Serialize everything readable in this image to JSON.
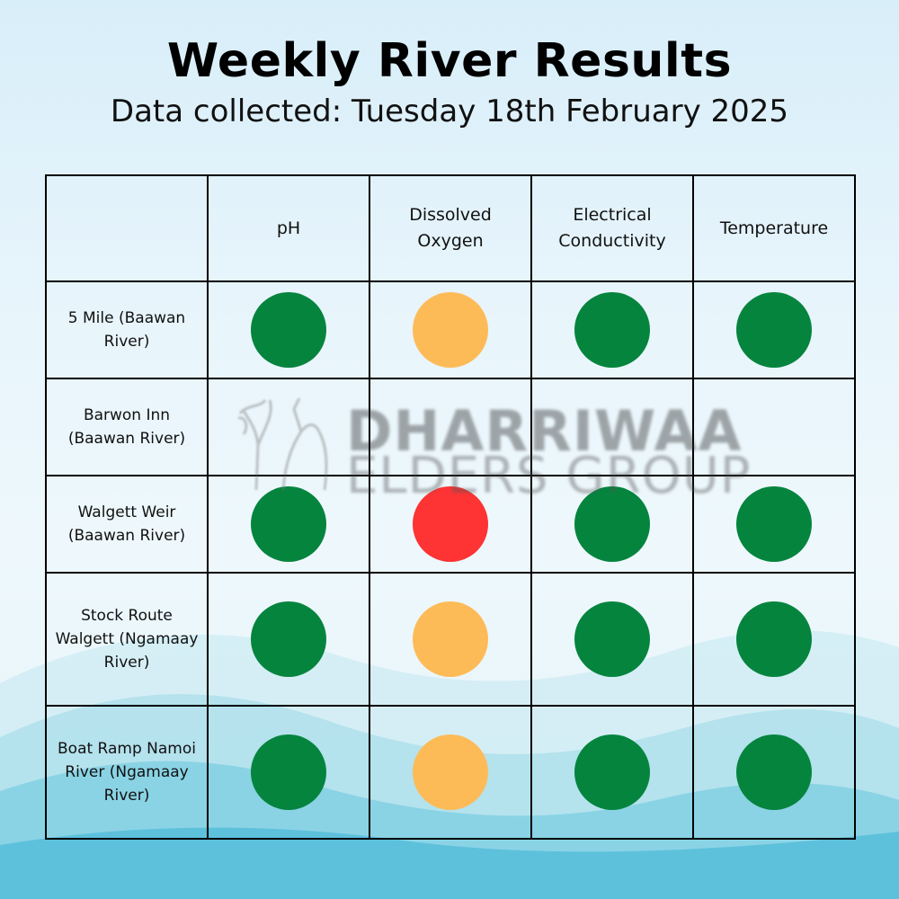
{
  "header": {
    "title": "Weekly River Results",
    "subtitle": "Data collected: Tuesday 18th February 2025"
  },
  "table": {
    "columns": [
      "",
      "pH",
      "Dissolved Oxygen",
      "Electrical Conductivity",
      "Temperature"
    ],
    "rows": [
      {
        "site": "5 Mile (Baawan River)",
        "status": [
          "good",
          "warn",
          "good",
          "good"
        ]
      },
      {
        "site": "Barwon Inn (Baawan River)",
        "status": [
          "none",
          "none",
          "none",
          "none"
        ]
      },
      {
        "site": "Walgett Weir (Baawan River)",
        "status": [
          "good",
          "bad",
          "good",
          "good"
        ]
      },
      {
        "site": "Stock Route Walgett (Ngamaay River)",
        "status": [
          "good",
          "warn",
          "good",
          "good"
        ]
      },
      {
        "site": "Boat Ramp Namoi River (Ngamaay River)",
        "status": [
          "good",
          "warn",
          "good",
          "good"
        ]
      }
    ]
  },
  "status_colors": {
    "good": "#05843e",
    "warn": "#fdbb58",
    "bad": "#fd3334"
  },
  "watermark": {
    "line1": "DHARRIWAA",
    "line2": "ELDERS GROUP"
  }
}
